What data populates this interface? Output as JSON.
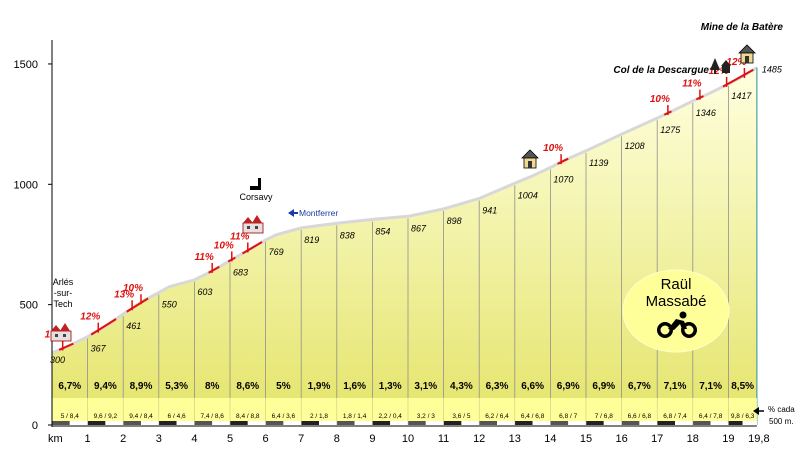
{
  "chart_data": {
    "type": "area",
    "xlabel": "km",
    "x_ticks": [
      "1",
      "2",
      "3",
      "4",
      "5",
      "6",
      "7",
      "8",
      "9",
      "10",
      "11",
      "12",
      "13",
      "14",
      "15",
      "16",
      "17",
      "18",
      "19",
      "19,8"
    ],
    "y_ticks": [
      0,
      500,
      1000,
      1500
    ],
    "ylim": [
      0,
      1500
    ],
    "xlim": [
      0,
      19.8
    ],
    "profile": {
      "km": [
        0,
        0.3,
        0.6,
        1,
        1.3,
        1.6,
        2,
        2.25,
        2.5,
        3,
        3.3,
        4,
        4.5,
        5,
        5.5,
        6,
        6.3,
        7,
        8,
        9,
        10,
        11,
        12,
        13,
        13.5,
        14,
        14.4,
        15,
        16,
        17,
        17.5,
        18,
        18.5,
        19,
        19.3,
        19.8
      ],
      "elevation": [
        300,
        318,
        338,
        367,
        392,
        420,
        461,
        485,
        510,
        550,
        575,
        603,
        640,
        683,
        725,
        769,
        790,
        819,
        838,
        854,
        867,
        898,
        941,
        1004,
        1035,
        1070,
        1100,
        1139,
        1208,
        1275,
        1310,
        1346,
        1380,
        1417,
        1440,
        1485
      ]
    },
    "elevation_labels": [
      {
        "km": 0,
        "value": "300"
      },
      {
        "km": 1,
        "value": "367"
      },
      {
        "km": 2,
        "value": "461"
      },
      {
        "km": 3,
        "value": "550"
      },
      {
        "km": 4,
        "value": "603"
      },
      {
        "km": 5,
        "value": "683"
      },
      {
        "km": 6,
        "value": "769"
      },
      {
        "km": 7,
        "value": "819"
      },
      {
        "km": 8,
        "value": "838"
      },
      {
        "km": 9,
        "value": "854"
      },
      {
        "km": 10,
        "value": "867"
      },
      {
        "km": 11,
        "value": "898"
      },
      {
        "km": 12,
        "value": "941"
      },
      {
        "km": 13,
        "value": "1004"
      },
      {
        "km": 14,
        "value": "1070"
      },
      {
        "km": 15,
        "value": "1139"
      },
      {
        "km": 16,
        "value": "1208"
      },
      {
        "km": 17,
        "value": "1275"
      },
      {
        "km": 18,
        "value": "1346"
      },
      {
        "km": 19,
        "value": "1417"
      },
      {
        "km": 19.8,
        "value": "1485"
      }
    ],
    "segment_gradients": [
      "6,7%",
      "9,4%",
      "8,9%",
      "5,3%",
      "8%",
      "8,6%",
      "5%",
      "1,9%",
      "1,6%",
      "1,3%",
      "3,1%",
      "4,3%",
      "6,3%",
      "6,6%",
      "6,9%",
      "6,9%",
      "6,7%",
      "7,1%",
      "7,1%",
      "8,5%"
    ],
    "segment_subgradients": [
      "5 / 8,4",
      "9,6 / 9,2",
      "9,4 / 8,4",
      "6 / 4,6",
      "7,4 / 8,6",
      "8,4 / 8,8",
      "6,4 / 3,6",
      "2 / 1,8",
      "1,8 / 1,4",
      "2,2 / 0,4",
      "3,2 / 3",
      "3,6 / 5",
      "6,2 / 6,4",
      "6,4 / 6,8",
      "6,8 / 7",
      "7 / 6,8",
      "6,6 / 6,8",
      "6,8 / 7,4",
      "6,4 / 7,8",
      "9,8 / 6,3"
    ],
    "max_gradients": [
      {
        "km": 0.3,
        "elev": 318,
        "label": "10%"
      },
      {
        "km": 1.3,
        "elev": 392,
        "label": "12%"
      },
      {
        "km": 2.25,
        "elev": 485,
        "label": "13%"
      },
      {
        "km": 2.5,
        "elev": 510,
        "label": "10%"
      },
      {
        "km": 4.5,
        "elev": 640,
        "label": "11%"
      },
      {
        "km": 5.05,
        "elev": 688,
        "label": "10%"
      },
      {
        "km": 5.5,
        "elev": 725,
        "label": "11%"
      },
      {
        "km": 14.3,
        "elev": 1092,
        "label": "10%"
      },
      {
        "km": 17.3,
        "elev": 1296,
        "label": "10%"
      },
      {
        "km": 18.2,
        "elev": 1360,
        "label": "11%"
      },
      {
        "km": 18.95,
        "elev": 1413,
        "label": "12%"
      },
      {
        "km": 19.45,
        "elev": 1450,
        "label": "12%"
      }
    ],
    "places": [
      {
        "name_lines": [
          "Arlés",
          "-sur-",
          "Tech"
        ],
        "style": "normal"
      },
      {
        "name_lines": [
          "Corsavy"
        ],
        "style": "normal"
      },
      {
        "name_lines": [
          "Montferrer"
        ],
        "style": "link"
      },
      {
        "name_lines": [
          "Col de la Descargue"
        ],
        "style": "bold"
      },
      {
        "name_lines": [
          "Mine de la Batère"
        ],
        "style": "bold"
      }
    ],
    "legend_note": [
      "% cada",
      "500 m."
    ],
    "author_lines": [
      "Raül",
      "Massabé"
    ],
    "colors": {
      "fill_top": "#ffffd8",
      "fill_bottom": "#e6e66e",
      "line": "#d8d8d8",
      "gradient_band": "#ffff99",
      "grid_divider": "#909090",
      "max_mark": "#e01010",
      "author_bubble": "#ffff99",
      "link": "#1a3aa8"
    }
  }
}
